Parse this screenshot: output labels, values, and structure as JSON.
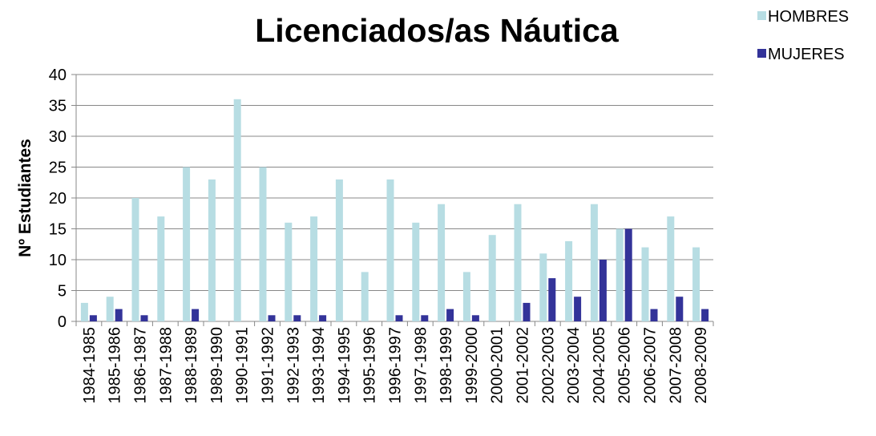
{
  "chart_data": {
    "type": "bar",
    "title": "Licenciados/as Náutica",
    "y_label": "Nº Estudiantes",
    "categories": [
      "1984-1985",
      "1985-1986",
      "1986-1987",
      "1987-1988",
      "1988-1989",
      "1989-1990",
      "1990-1991",
      "1991-1992",
      "1992-1993",
      "1993-1994",
      "1994-1995",
      "1995-1996",
      "1996-1997",
      "1997-1998",
      "1998-1999",
      "1999-2000",
      "2000-2001",
      "2001-2002",
      "2002-2003",
      "2003-2004",
      "2004-2005",
      "2005-2006",
      "2006-2007",
      "2007-2008",
      "2008-2009"
    ],
    "series": [
      {
        "name": "HOMBRES",
        "color": "#b7dde3",
        "values": [
          3,
          4,
          20,
          17,
          25,
          23,
          36,
          25,
          16,
          17,
          23,
          8,
          23,
          16,
          19,
          8,
          14,
          19,
          11,
          13,
          19,
          15,
          12,
          17,
          12
        ]
      },
      {
        "name": "MUJERES",
        "color": "#333399",
        "values": [
          1,
          2,
          1,
          0,
          2,
          0,
          0,
          1,
          1,
          1,
          0,
          0,
          1,
          1,
          2,
          1,
          0,
          3,
          7,
          4,
          10,
          15,
          2,
          4,
          2
        ]
      }
    ],
    "ylim": [
      0,
      40
    ],
    "yticks": [
      0,
      5,
      10,
      15,
      20,
      25,
      30,
      35,
      40
    ],
    "grid": true,
    "legend": "top-right"
  }
}
